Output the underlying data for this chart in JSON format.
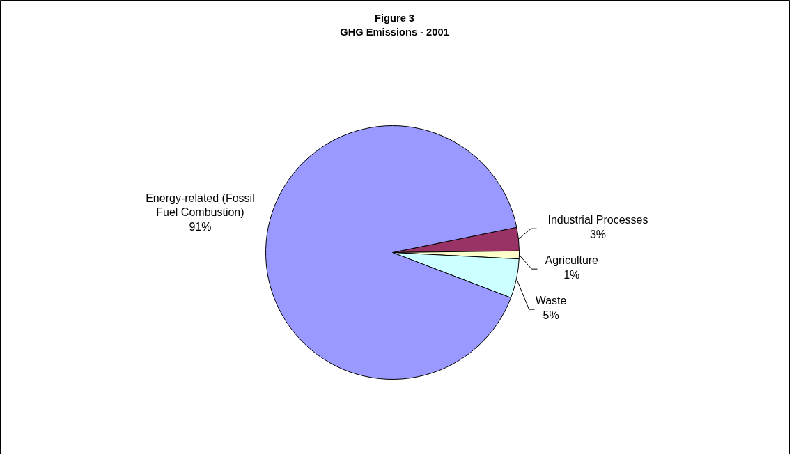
{
  "chart_data": {
    "type": "pie",
    "title": "Figure 3",
    "subtitle": "GHG Emissions - 2001",
    "categories": [
      "Industrial Processes",
      "Agriculture",
      "Waste",
      "Energy-related (Fossil Fuel Combustion)"
    ],
    "values": [
      3,
      1,
      5,
      91
    ],
    "value_labels": [
      "3%",
      "1%",
      "5%",
      "91%"
    ],
    "colors": [
      "#993366",
      "#ffffcc",
      "#ccffff",
      "#9999ff"
    ]
  }
}
